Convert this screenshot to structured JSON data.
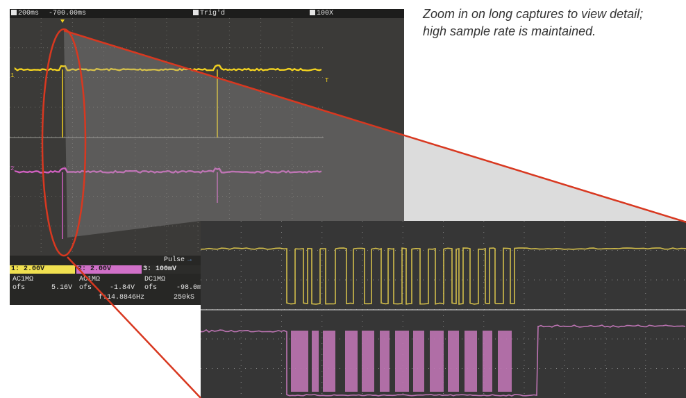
{
  "caption": "Zoom in on long captures to view detail; high sample rate is maintained.",
  "scope": {
    "status": {
      "timebase": "200ms",
      "offset": "-700.00ms",
      "trigger_state": "Trig'd",
      "zoom": "100X"
    },
    "markers": {
      "ch1": "1",
      "ch2": "2",
      "trigger_level": "T"
    },
    "trigger_type": "Pulse",
    "channels": [
      {
        "scale": "1: 2.00V",
        "coupling": "AC1MΩ",
        "offset_label": "ofs",
        "offset_value": "5.16V",
        "color": "#f0e050"
      },
      {
        "scale": "2: 2.00V",
        "coupling": "AC1MΩ",
        "offset_label": "ofs",
        "offset_value": "-1.84V",
        "color": "#d070c8"
      },
      {
        "scale": "3: 100mV",
        "coupling": "DC1MΩ",
        "offset_label": "ofs",
        "offset_value": "-98.0m",
        "color": "#e0e0e0"
      }
    ],
    "frequency": "f:14.8846Hz",
    "sample_rate": "250kS"
  },
  "colors": {
    "ch1": "#f0d020",
    "ch2": "#d060c0",
    "highlight": "#d83820",
    "screen_bg": "#3b3a38",
    "zoom_grid": "#7a7a7a"
  },
  "icons": [
    "scope-m-icon",
    "run-icon",
    "zoom-icon",
    "trigger-edge-icon"
  ]
}
